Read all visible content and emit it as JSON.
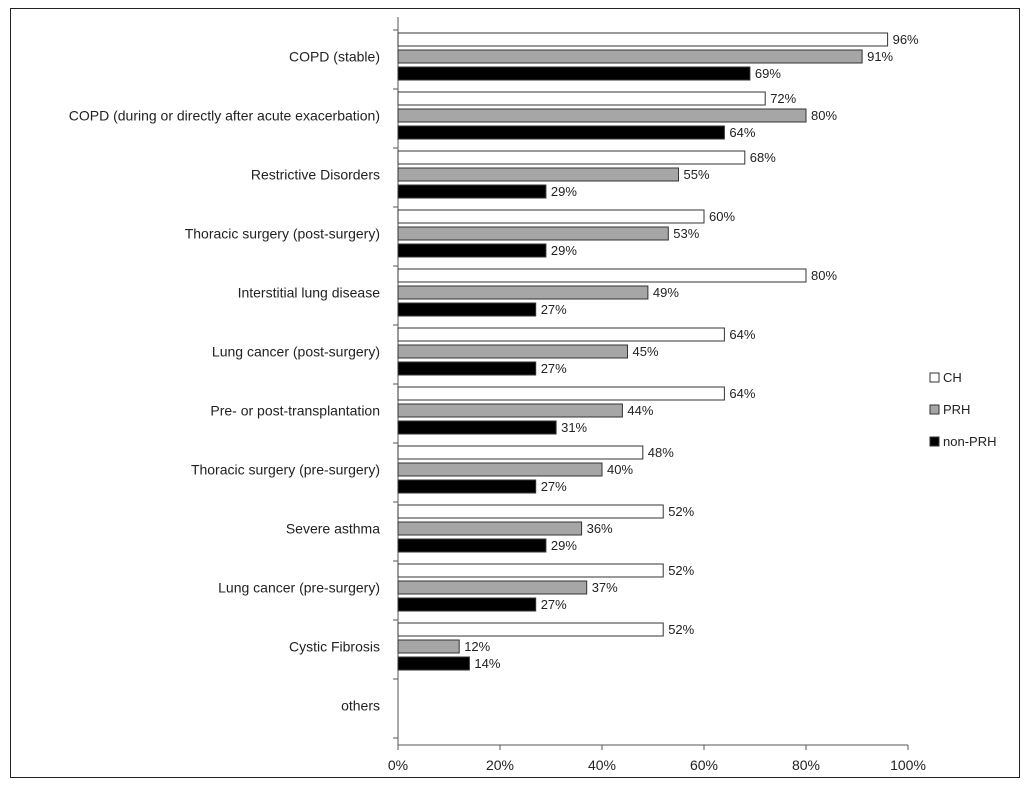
{
  "chart_data": {
    "type": "bar",
    "orientation": "horizontal",
    "categories": [
      "COPD (stable)",
      "COPD (during or directly after acute exacerbation)",
      "Restrictive Disorders",
      "Thoracic surgery (post-surgery)",
      "Interstitial lung disease",
      "Lung cancer (post-surgery)",
      "Pre- or post-transplantation",
      "Thoracic surgery (pre-surgery)",
      "Severe asthma",
      "Lung cancer (pre-surgery)",
      "Cystic Fibrosis",
      "others"
    ],
    "series": [
      {
        "name": "CH",
        "color": "#ffffff",
        "values": [
          96,
          72,
          68,
          60,
          80,
          64,
          64,
          48,
          52,
          52,
          52,
          null
        ]
      },
      {
        "name": "PRH",
        "color": "#a6a6a6",
        "values": [
          91,
          80,
          55,
          53,
          49,
          45,
          44,
          40,
          36,
          37,
          12,
          null
        ]
      },
      {
        "name": "non-PRH",
        "color": "#000000",
        "values": [
          69,
          64,
          29,
          29,
          27,
          27,
          31,
          27,
          29,
          27,
          14,
          null
        ]
      }
    ],
    "xlim": [
      0,
      100
    ],
    "xticks": [
      "0%",
      "20%",
      "40%",
      "60%",
      "80%",
      "100%"
    ],
    "value_suffix": "%",
    "legend_position": "right",
    "grid": false
  }
}
